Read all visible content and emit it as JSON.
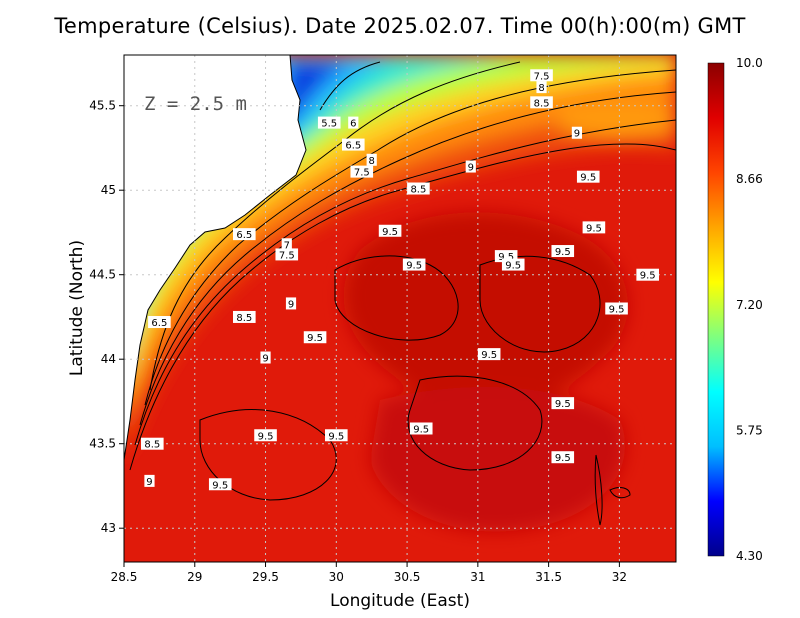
{
  "chart_data": {
    "type": "heatmap",
    "title": "Temperature (Celsius). Date 2025.02.07. Time 00(h):00(m) GMT",
    "xlabel": "Longitude (East)",
    "ylabel": "Latitude (North)",
    "xlim": [
      28.5,
      32.4
    ],
    "ylim": [
      42.8,
      45.8
    ],
    "x_ticks": [
      "28.5",
      "29",
      "29.5",
      "30",
      "30.5",
      "31",
      "31.5",
      "32"
    ],
    "y_ticks": [
      "43",
      "43.5",
      "44",
      "44.5",
      "45",
      "45.5"
    ],
    "grid": true,
    "colorbar": {
      "min": 4.3,
      "max": 10.0,
      "tick_labels": [
        "10.0",
        "8.66",
        "7.20",
        "5.75",
        "4.30"
      ],
      "colors": [
        "#00008b",
        "#0000ff",
        "#00bfff",
        "#00ffff",
        "#7fff7f",
        "#ffff00",
        "#ffa500",
        "#ff4500",
        "#e00000",
        "#8b0000"
      ]
    },
    "annotation": "Z = 2.5 m",
    "contour_labels": [
      {
        "text": "7.5",
        "lon": 31.45,
        "lat": 45.68
      },
      {
        "text": "8",
        "lon": 31.45,
        "lat": 45.61
      },
      {
        "text": "8.5",
        "lon": 31.45,
        "lat": 45.52
      },
      {
        "text": "5.5",
        "lon": 29.95,
        "lat": 45.4
      },
      {
        "text": "6",
        "lon": 30.12,
        "lat": 45.4
      },
      {
        "text": "6.5",
        "lon": 30.12,
        "lat": 45.27
      },
      {
        "text": "8",
        "lon": 30.25,
        "lat": 45.18
      },
      {
        "text": "7.5",
        "lon": 30.18,
        "lat": 45.11
      },
      {
        "text": "9",
        "lon": 31.7,
        "lat": 45.34
      },
      {
        "text": "9",
        "lon": 30.95,
        "lat": 45.14
      },
      {
        "text": "9.5",
        "lon": 31.78,
        "lat": 45.08
      },
      {
        "text": "8.5",
        "lon": 30.58,
        "lat": 45.01
      },
      {
        "text": "9.5",
        "lon": 30.38,
        "lat": 44.76
      },
      {
        "text": "9.5",
        "lon": 31.82,
        "lat": 44.78
      },
      {
        "text": "6.5",
        "lon": 29.35,
        "lat": 44.74
      },
      {
        "text": "7",
        "lon": 29.65,
        "lat": 44.68
      },
      {
        "text": "7.5",
        "lon": 29.65,
        "lat": 44.62
      },
      {
        "text": "9.5",
        "lon": 30.55,
        "lat": 44.56
      },
      {
        "text": "9.5",
        "lon": 31.2,
        "lat": 44.61
      },
      {
        "text": "9.5",
        "lon": 31.25,
        "lat": 44.56
      },
      {
        "text": "9.5",
        "lon": 31.6,
        "lat": 44.64
      },
      {
        "text": "9.5",
        "lon": 32.2,
        "lat": 44.5
      },
      {
        "text": "9",
        "lon": 29.68,
        "lat": 44.33
      },
      {
        "text": "8.5",
        "lon": 29.35,
        "lat": 44.25
      },
      {
        "text": "9.5",
        "lon": 31.98,
        "lat": 44.3
      },
      {
        "text": "6.5",
        "lon": 28.75,
        "lat": 44.22
      },
      {
        "text": "9.5",
        "lon": 29.85,
        "lat": 44.13
      },
      {
        "text": "9.5",
        "lon": 31.08,
        "lat": 44.03
      },
      {
        "text": "9",
        "lon": 29.5,
        "lat": 44.01
      },
      {
        "text": "9.5",
        "lon": 31.6,
        "lat": 43.74
      },
      {
        "text": "9.5",
        "lon": 29.5,
        "lat": 43.55
      },
      {
        "text": "9.5",
        "lon": 30.0,
        "lat": 43.55
      },
      {
        "text": "9.5",
        "lon": 30.6,
        "lat": 43.59
      },
      {
        "text": "8.5",
        "lon": 28.7,
        "lat": 43.5
      },
      {
        "text": "9.5",
        "lon": 31.6,
        "lat": 43.42
      },
      {
        "text": "9",
        "lon": 28.68,
        "lat": 43.28
      },
      {
        "text": "9.5",
        "lon": 29.18,
        "lat": 43.26
      }
    ]
  }
}
